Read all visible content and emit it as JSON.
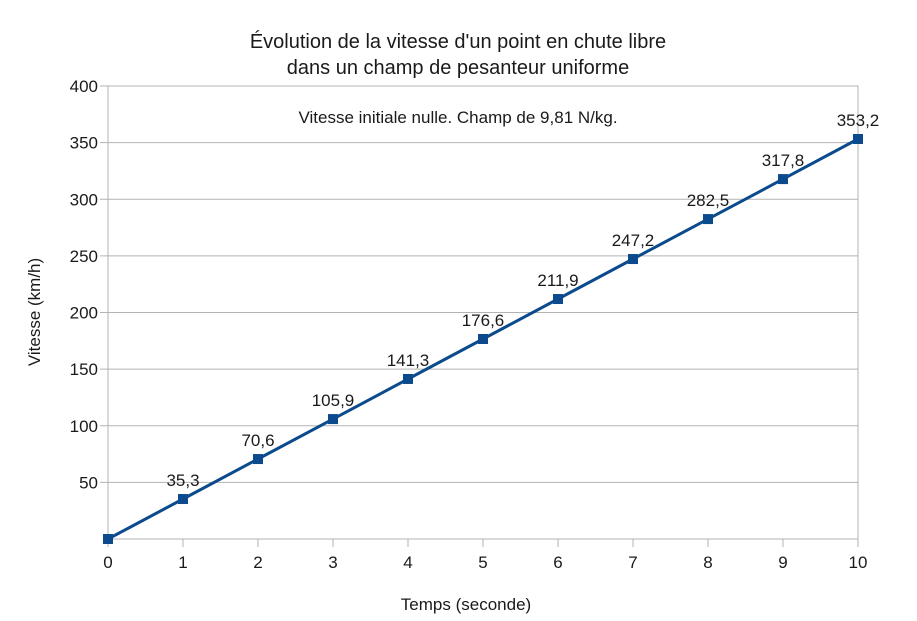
{
  "chart_data": {
    "type": "line",
    "title": [
      "Évolution de la vitesse d'un point en chute libre",
      "dans un champ de pesanteur uniforme"
    ],
    "annotation": "Vitesse initiale nulle. Champ de 9,81 N/kg.",
    "xlabel": "Temps (seconde)",
    "ylabel": "Vitesse (km/h)",
    "xlim": [
      0,
      10
    ],
    "ylim": [
      0,
      400
    ],
    "x_ticks": [
      "0",
      "1",
      "2",
      "3",
      "4",
      "5",
      "6",
      "7",
      "8",
      "9",
      "10"
    ],
    "y_ticks": [
      "50",
      "100",
      "150",
      "200",
      "250",
      "300",
      "350",
      "400"
    ],
    "grid": true,
    "legend": "none",
    "series": [
      {
        "color": "#0b4a8c",
        "marker": "square",
        "x": [
          0,
          1,
          2,
          3,
          4,
          5,
          6,
          7,
          8,
          9,
          10
        ],
        "y": [
          0,
          35.3,
          70.6,
          105.9,
          141.3,
          176.6,
          211.9,
          247.2,
          282.5,
          317.8,
          353.2
        ],
        "labels": [
          "",
          "35,3",
          "70,6",
          "105,9",
          "141,3",
          "176,6",
          "211,9",
          "247,2",
          "282,5",
          "317,8",
          "353,2"
        ]
      }
    ]
  }
}
